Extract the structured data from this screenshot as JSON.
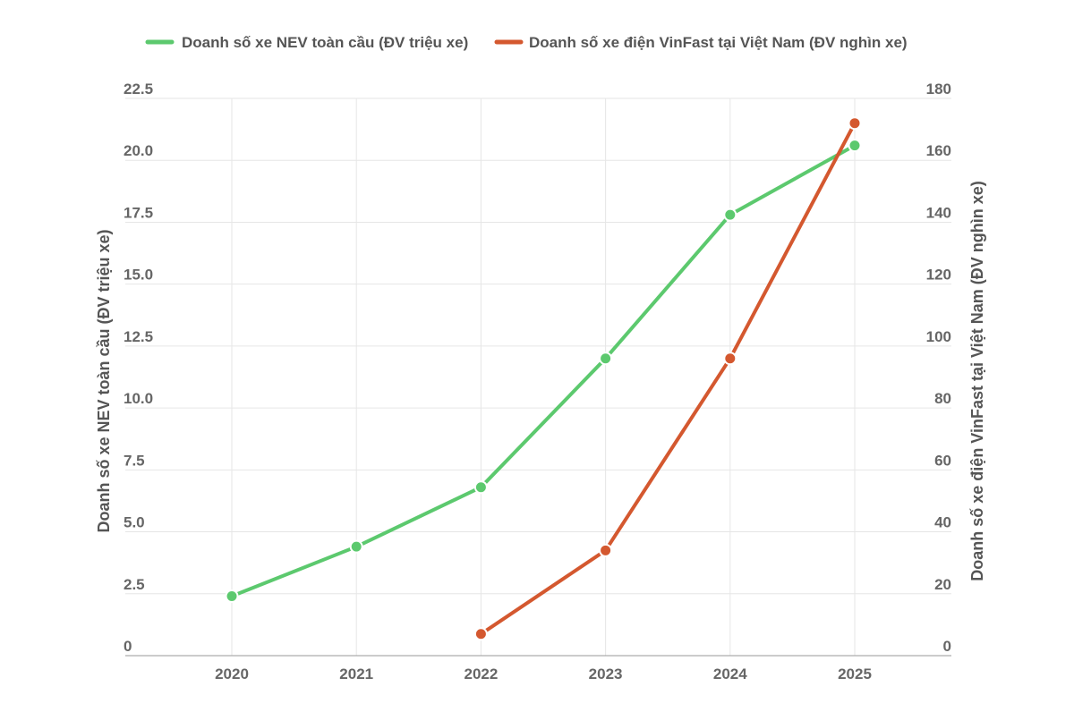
{
  "chart_data": {
    "type": "line",
    "x": [
      2020,
      2021,
      2022,
      2023,
      2024,
      2025
    ],
    "x_tick_labels": [
      "2020",
      "2021",
      "2022",
      "2023",
      "2024",
      "2025"
    ],
    "y_left": {
      "label": "Doanh số xe NEV toàn cầu (ĐV triệu xe)",
      "range": [
        0,
        22.5
      ],
      "ticks": [
        0,
        2.5,
        5,
        7.5,
        10,
        12.5,
        15,
        17.5,
        20,
        22.5
      ],
      "tick_labels": [
        "0",
        "2.5",
        "5.0",
        "7.5",
        "10.0",
        "12.5",
        "15.0",
        "17.5",
        "20.0",
        "22.5"
      ]
    },
    "y_right": {
      "label": "Doanh số xe điện VinFast tại Việt Nam (ĐV nghìn xe)",
      "range": [
        0,
        180
      ],
      "ticks": [
        0,
        20,
        40,
        60,
        80,
        100,
        120,
        140,
        160,
        180
      ],
      "tick_labels": [
        "0",
        "20",
        "40",
        "60",
        "80",
        "100",
        "120",
        "140",
        "160",
        "180"
      ]
    },
    "series": [
      {
        "name": "Doanh số xe NEV toàn cầu (ĐV triệu xe)",
        "axis": "left",
        "color": "#5cc96e",
        "values": [
          2.4,
          4.4,
          6.8,
          12.0,
          17.8,
          20.6
        ]
      },
      {
        "name": "Doanh số xe điện VinFast tại Việt Nam (ĐV nghìn xe)",
        "axis": "right",
        "color": "#d4582f",
        "values": [
          null,
          null,
          7,
          34,
          96,
          172
        ]
      }
    ],
    "grid": true,
    "legend_position": "top"
  }
}
